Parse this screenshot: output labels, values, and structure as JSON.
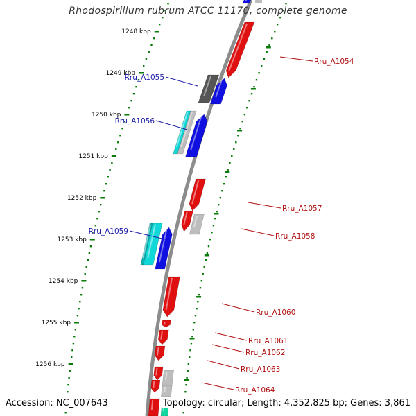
{
  "title": "Rhodospirillum rubrum ATCC 11170, complete genome",
  "footer": {
    "accession": "Accession: NC_007643",
    "summary": "Topology: circular; Length: 4,352,825 bp; Genes: 3,861"
  },
  "colors": {
    "backbone": "#8c8c8c",
    "ticks": "#0a7a0a",
    "forward": "#1010e0",
    "reverse": "#e01010",
    "dark": "#555555",
    "light": "#bdbdbd",
    "cyan": "#11d8d8",
    "teal": "#12d8a0",
    "label_forward": "#1a1aa8",
    "label_reverse": "#b01010"
  },
  "ticks": [
    "1248 kbp",
    "1249 kbp",
    "1250 kbp",
    "1251 kbp",
    "1252 kbp",
    "1253 kbp",
    "1254 kbp",
    "1255 kbp",
    "1256 kbp"
  ],
  "genes": [
    {
      "label": "Rru_A1054",
      "side": "right"
    },
    {
      "label": "Rru_A1055",
      "side": "left"
    },
    {
      "label": "Rru_A1056",
      "side": "left"
    },
    {
      "label": "Rru_A1057",
      "side": "right"
    },
    {
      "label": "Rru_A1058",
      "side": "right"
    },
    {
      "label": "Rru_A1059",
      "side": "left"
    },
    {
      "label": "Rru_A1060",
      "side": "right"
    },
    {
      "label": "Rru_A1061",
      "side": "right"
    },
    {
      "label": "Rru_A1062",
      "side": "right"
    },
    {
      "label": "Rru_A1063",
      "side": "right"
    },
    {
      "label": "Rru_A1064",
      "side": "right"
    }
  ]
}
